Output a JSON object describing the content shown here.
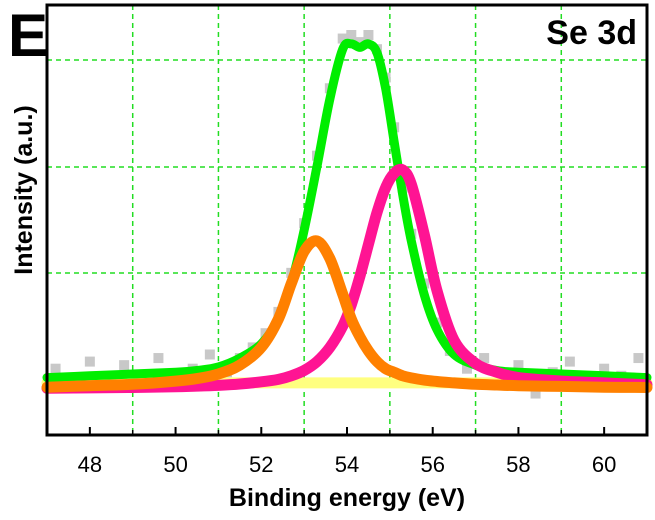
{
  "panel_letter": "E",
  "chart_data": {
    "type": "line",
    "title": "Se 3d",
    "xlabel": "Binding energy (eV)",
    "ylabel": "Intensity (a.u.)",
    "xlim": [
      47,
      61
    ],
    "ylim": [
      0,
      1.0
    ],
    "x_ticks": [
      48,
      50,
      52,
      54,
      56,
      58,
      60
    ],
    "grid": true,
    "grid_style": "dashed",
    "legend": "none",
    "x": [
      47.0,
      48.0,
      49.0,
      50.0,
      50.5,
      51.0,
      51.5,
      52.0,
      52.4,
      52.7,
      53.0,
      53.3,
      53.6,
      53.9,
      54.1,
      54.3,
      54.5,
      54.7,
      54.9,
      55.1,
      55.3,
      55.5,
      55.8,
      56.1,
      56.5,
      57.0,
      57.5,
      58.0,
      59.0,
      60.0,
      61.0
    ],
    "series": [
      {
        "color": "#00ee00",
        "values": [
          0.035,
          0.04,
          0.045,
          0.05,
          0.055,
          0.065,
          0.09,
          0.13,
          0.2,
          0.3,
          0.45,
          0.63,
          0.82,
          0.96,
          0.975,
          0.965,
          0.975,
          0.95,
          0.85,
          0.7,
          0.55,
          0.42,
          0.27,
          0.17,
          0.1,
          0.07,
          0.055,
          0.05,
          0.045,
          0.04,
          0.035
        ]
      },
      {
        "color": "#ff1493",
        "values": [
          0.005,
          0.006,
          0.007,
          0.009,
          0.011,
          0.013,
          0.017,
          0.023,
          0.03,
          0.04,
          0.055,
          0.08,
          0.12,
          0.18,
          0.24,
          0.32,
          0.41,
          0.5,
          0.57,
          0.61,
          0.62,
          0.58,
          0.44,
          0.28,
          0.14,
          0.075,
          0.05,
          0.035,
          0.025,
          0.02,
          0.015
        ]
      },
      {
        "color": "#ff8000",
        "values": [
          0.008,
          0.012,
          0.016,
          0.025,
          0.032,
          0.045,
          0.07,
          0.12,
          0.2,
          0.3,
          0.39,
          0.42,
          0.37,
          0.27,
          0.2,
          0.15,
          0.11,
          0.08,
          0.06,
          0.05,
          0.04,
          0.034,
          0.028,
          0.024,
          0.02,
          0.016,
          0.014,
          0.012,
          0.01,
          0.008,
          0.007
        ]
      },
      {
        "color": "#ffff80",
        "values": [
          0.02,
          0.02,
          0.02,
          0.02,
          0.02,
          0.02,
          0.02,
          0.02,
          0.02,
          0.02,
          0.02,
          0.02,
          0.02,
          0.02,
          0.02,
          0.02,
          0.02,
          0.02,
          0.02,
          0.02,
          0.02,
          0.02,
          0.02,
          0.02,
          0.02,
          0.02,
          0.02,
          0.02,
          0.02,
          0.02,
          0.02
        ]
      }
    ],
    "raw_data": {
      "color": "#c8c8c8",
      "x": [
        47.2,
        47.6,
        48.0,
        48.4,
        48.8,
        49.2,
        49.6,
        50.0,
        50.4,
        50.8,
        51.2,
        51.5,
        51.8,
        52.1,
        52.4,
        52.7,
        53.0,
        53.3,
        53.6,
        53.9,
        54.1,
        54.3,
        54.5,
        54.7,
        54.9,
        55.1,
        55.3,
        55.5,
        55.8,
        56.1,
        56.4,
        56.8,
        57.2,
        57.6,
        58.0,
        58.4,
        58.8,
        59.2,
        59.6,
        60.0,
        60.4,
        60.8
      ],
      "y": [
        0.06,
        0.02,
        0.08,
        0.03,
        0.07,
        0.01,
        0.09,
        0.04,
        0.06,
        0.1,
        0.05,
        0.09,
        0.12,
        0.16,
        0.22,
        0.33,
        0.47,
        0.66,
        0.85,
        0.99,
        1.0,
        0.98,
        1.0,
        0.96,
        0.88,
        0.74,
        0.57,
        0.44,
        0.3,
        0.19,
        0.11,
        0.06,
        0.09,
        0.03,
        0.07,
        -0.01,
        0.05,
        0.08,
        0.02,
        0.06,
        0.04,
        0.09
      ]
    }
  }
}
